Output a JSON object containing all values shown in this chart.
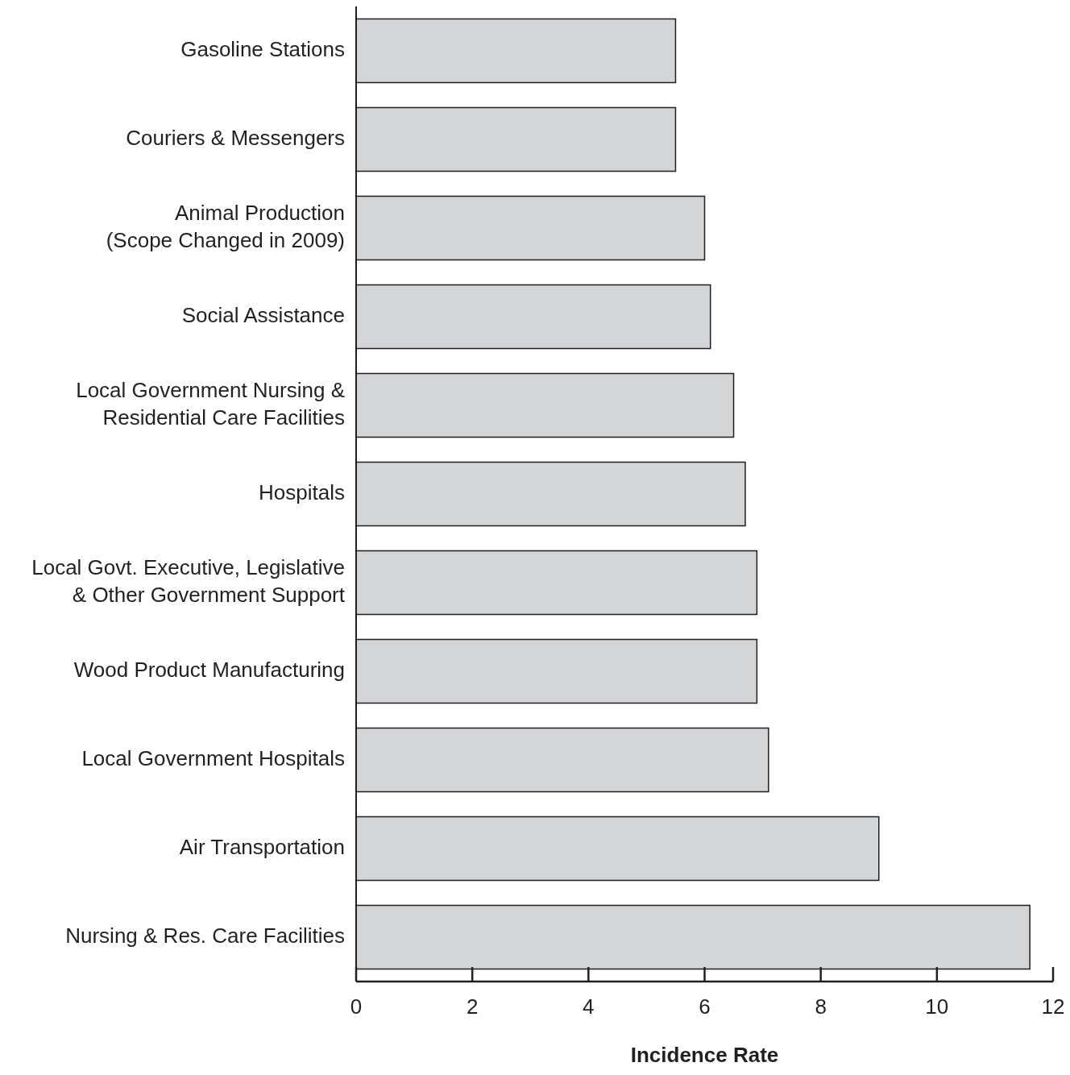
{
  "chart_data": {
    "type": "bar",
    "orientation": "horizontal",
    "xlabel": "Incidence Rate",
    "categories": [
      "Gasoline Stations",
      "Couriers & Messengers",
      "Animal Production\n(Scope Changed in 2009)",
      "Social Assistance",
      "Local Government Nursing &\nResidential Care Facilities",
      "Hospitals",
      "Local Govt. Executive, Legislative\n& Other Government Support",
      "Wood Product Manufacturing",
      "Local Government Hospitals",
      "Air Transportation",
      "Nursing & Res. Care Facilities"
    ],
    "values": [
      5.5,
      5.5,
      6.0,
      6.1,
      6.5,
      6.7,
      6.9,
      6.9,
      7.1,
      9.0,
      11.6
    ],
    "color": "#d4d5d7",
    "xlim": [
      0,
      12
    ],
    "xticks": [
      0,
      2,
      4,
      6,
      8,
      10,
      12
    ],
    "grid": false,
    "legend": false
  }
}
